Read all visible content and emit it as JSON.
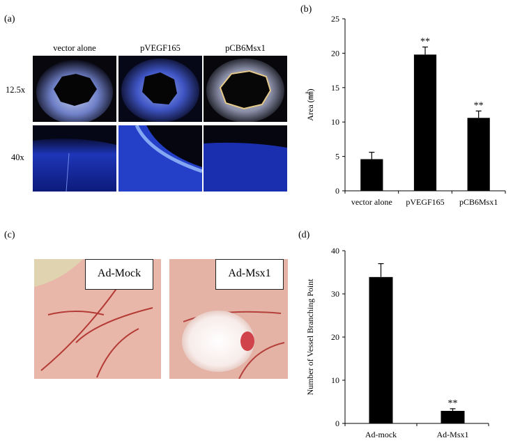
{
  "panels": {
    "a_label": "(a)",
    "b_label": "(b)",
    "c_label": "(c)",
    "d_label": "(d)"
  },
  "micro": {
    "columns": [
      "vector alone",
      "pVEGF165",
      "pCB6Msx1"
    ],
    "rows": [
      "12.5x",
      "40x"
    ]
  },
  "cam": {
    "left_tag": "Ad-Mock",
    "right_tag": "Ad-Msx1"
  },
  "chart_data": [
    {
      "type": "bar",
      "categories": [
        "vector alone",
        "pVEGF165",
        "pCB6Msx1"
      ],
      "values": [
        4.6,
        19.8,
        10.6
      ],
      "errors": [
        1.0,
        1.1,
        1.0
      ],
      "significance": [
        "",
        "**",
        "**"
      ],
      "ylabel": "Area (㎟)",
      "xlabel": "",
      "ylim": [
        0,
        25
      ],
      "yticks": [
        0,
        5,
        10,
        15,
        20,
        25
      ],
      "grid": false,
      "bar_color": "#000000"
    },
    {
      "type": "bar",
      "categories": [
        "Ad-mock",
        "Ad-Msx1"
      ],
      "values": [
        33.9,
        2.9
      ],
      "errors": [
        3.1,
        0.5
      ],
      "significance": [
        "",
        "**"
      ],
      "ylabel": "Number of Vessel Branching Point",
      "xlabel": "",
      "ylim": [
        0,
        40
      ],
      "yticks": [
        0,
        10,
        20,
        30,
        40
      ],
      "grid": false,
      "bar_color": "#000000"
    }
  ]
}
